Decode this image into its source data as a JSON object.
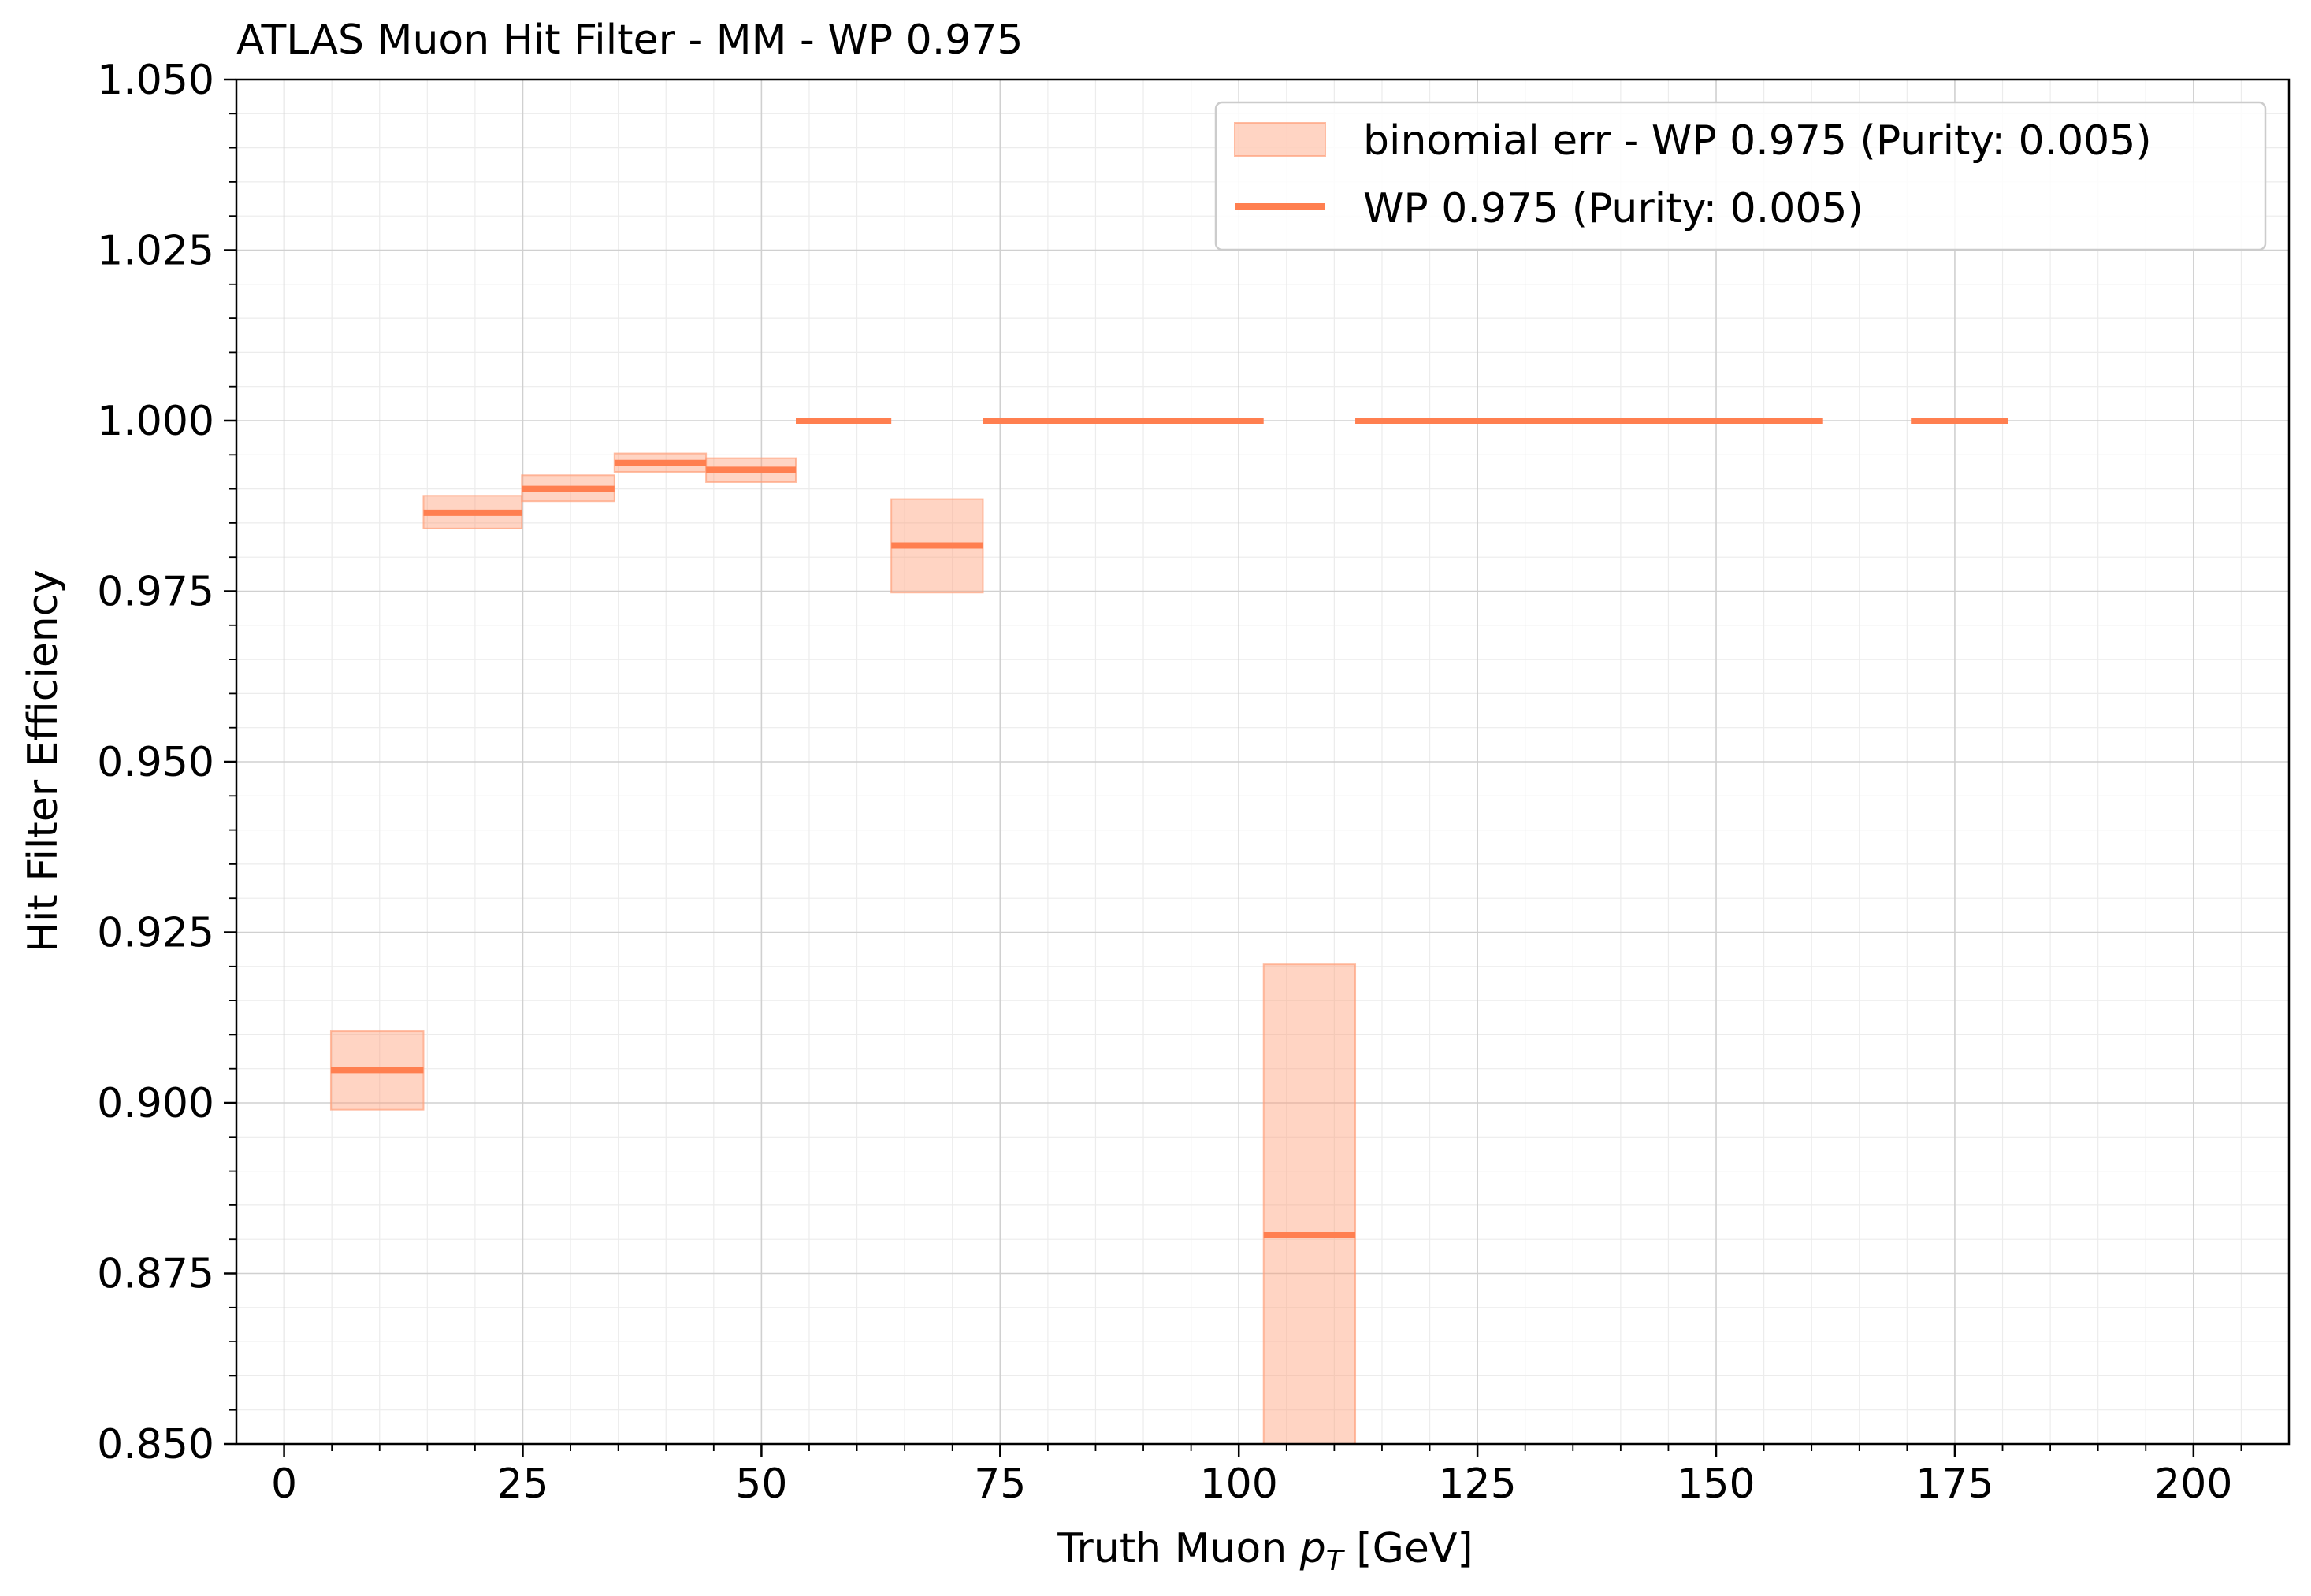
{
  "chart_data": {
    "type": "step-line",
    "title": "ATLAS Muon Hit Filter - MM - WP 0.975",
    "xlabel_prefix": "Truth Muon ",
    "xlabel_var": "p",
    "xlabel_sub": "T",
    "xlabel_suffix": " [GeV]",
    "ylabel": "Hit Filter Efficiency",
    "xlim": [
      -5,
      210
    ],
    "ylim": [
      0.85,
      1.05
    ],
    "xticks": [
      0,
      25,
      50,
      75,
      100,
      125,
      150,
      175,
      200
    ],
    "xtick_labels": [
      "0",
      "25",
      "50",
      "75",
      "100",
      "125",
      "150",
      "175",
      "200"
    ],
    "yticks": [
      0.85,
      0.875,
      0.9,
      0.925,
      0.95,
      0.975,
      1.0,
      1.025,
      1.05
    ],
    "ytick_labels": [
      "0.850",
      "0.875",
      "0.900",
      "0.925",
      "0.950",
      "0.975",
      "1.000",
      "1.025",
      "1.050"
    ],
    "grid": true,
    "legend_position": "top-right",
    "colors": {
      "line": "#ff7f50",
      "band": "#ffa07a"
    },
    "series": [
      {
        "name": "WP 0.975 (Purity: 0.005)",
        "band_name": "binomial err - WP 0.975 (Purity: 0.005)",
        "bins": [
          {
            "x0": 4.9,
            "x1": 14.6,
            "y": 0.9048,
            "lo": 0.899,
            "hi": 0.9105
          },
          {
            "x0": 14.6,
            "x1": 24.9,
            "y": 0.9865,
            "lo": 0.9842,
            "hi": 0.989
          },
          {
            "x0": 24.9,
            "x1": 34.6,
            "y": 0.99,
            "lo": 0.9882,
            "hi": 0.992
          },
          {
            "x0": 34.6,
            "x1": 44.2,
            "y": 0.9938,
            "lo": 0.9925,
            "hi": 0.9952
          },
          {
            "x0": 44.2,
            "x1": 53.6,
            "y": 0.9928,
            "lo": 0.991,
            "hi": 0.9945
          },
          {
            "x0": 53.6,
            "x1": 63.6,
            "y": 1.0,
            "lo": 1.0,
            "hi": 1.0
          },
          {
            "x0": 63.6,
            "x1": 73.2,
            "y": 0.9817,
            "lo": 0.9748,
            "hi": 0.9885
          },
          {
            "x0": 73.2,
            "x1": 102.6,
            "y": 1.0,
            "lo": 1.0,
            "hi": 1.0
          },
          {
            "x0": 102.6,
            "x1": 112.2,
            "y": 0.8806,
            "lo": 0.85,
            "hi": 0.9203
          },
          {
            "x0": 112.2,
            "x1": 161.2,
            "y": 1.0,
            "lo": 1.0,
            "hi": 1.0
          },
          {
            "x0": 170.4,
            "x1": 180.6,
            "y": 1.0,
            "lo": 1.0,
            "hi": 1.0
          }
        ]
      }
    ]
  }
}
